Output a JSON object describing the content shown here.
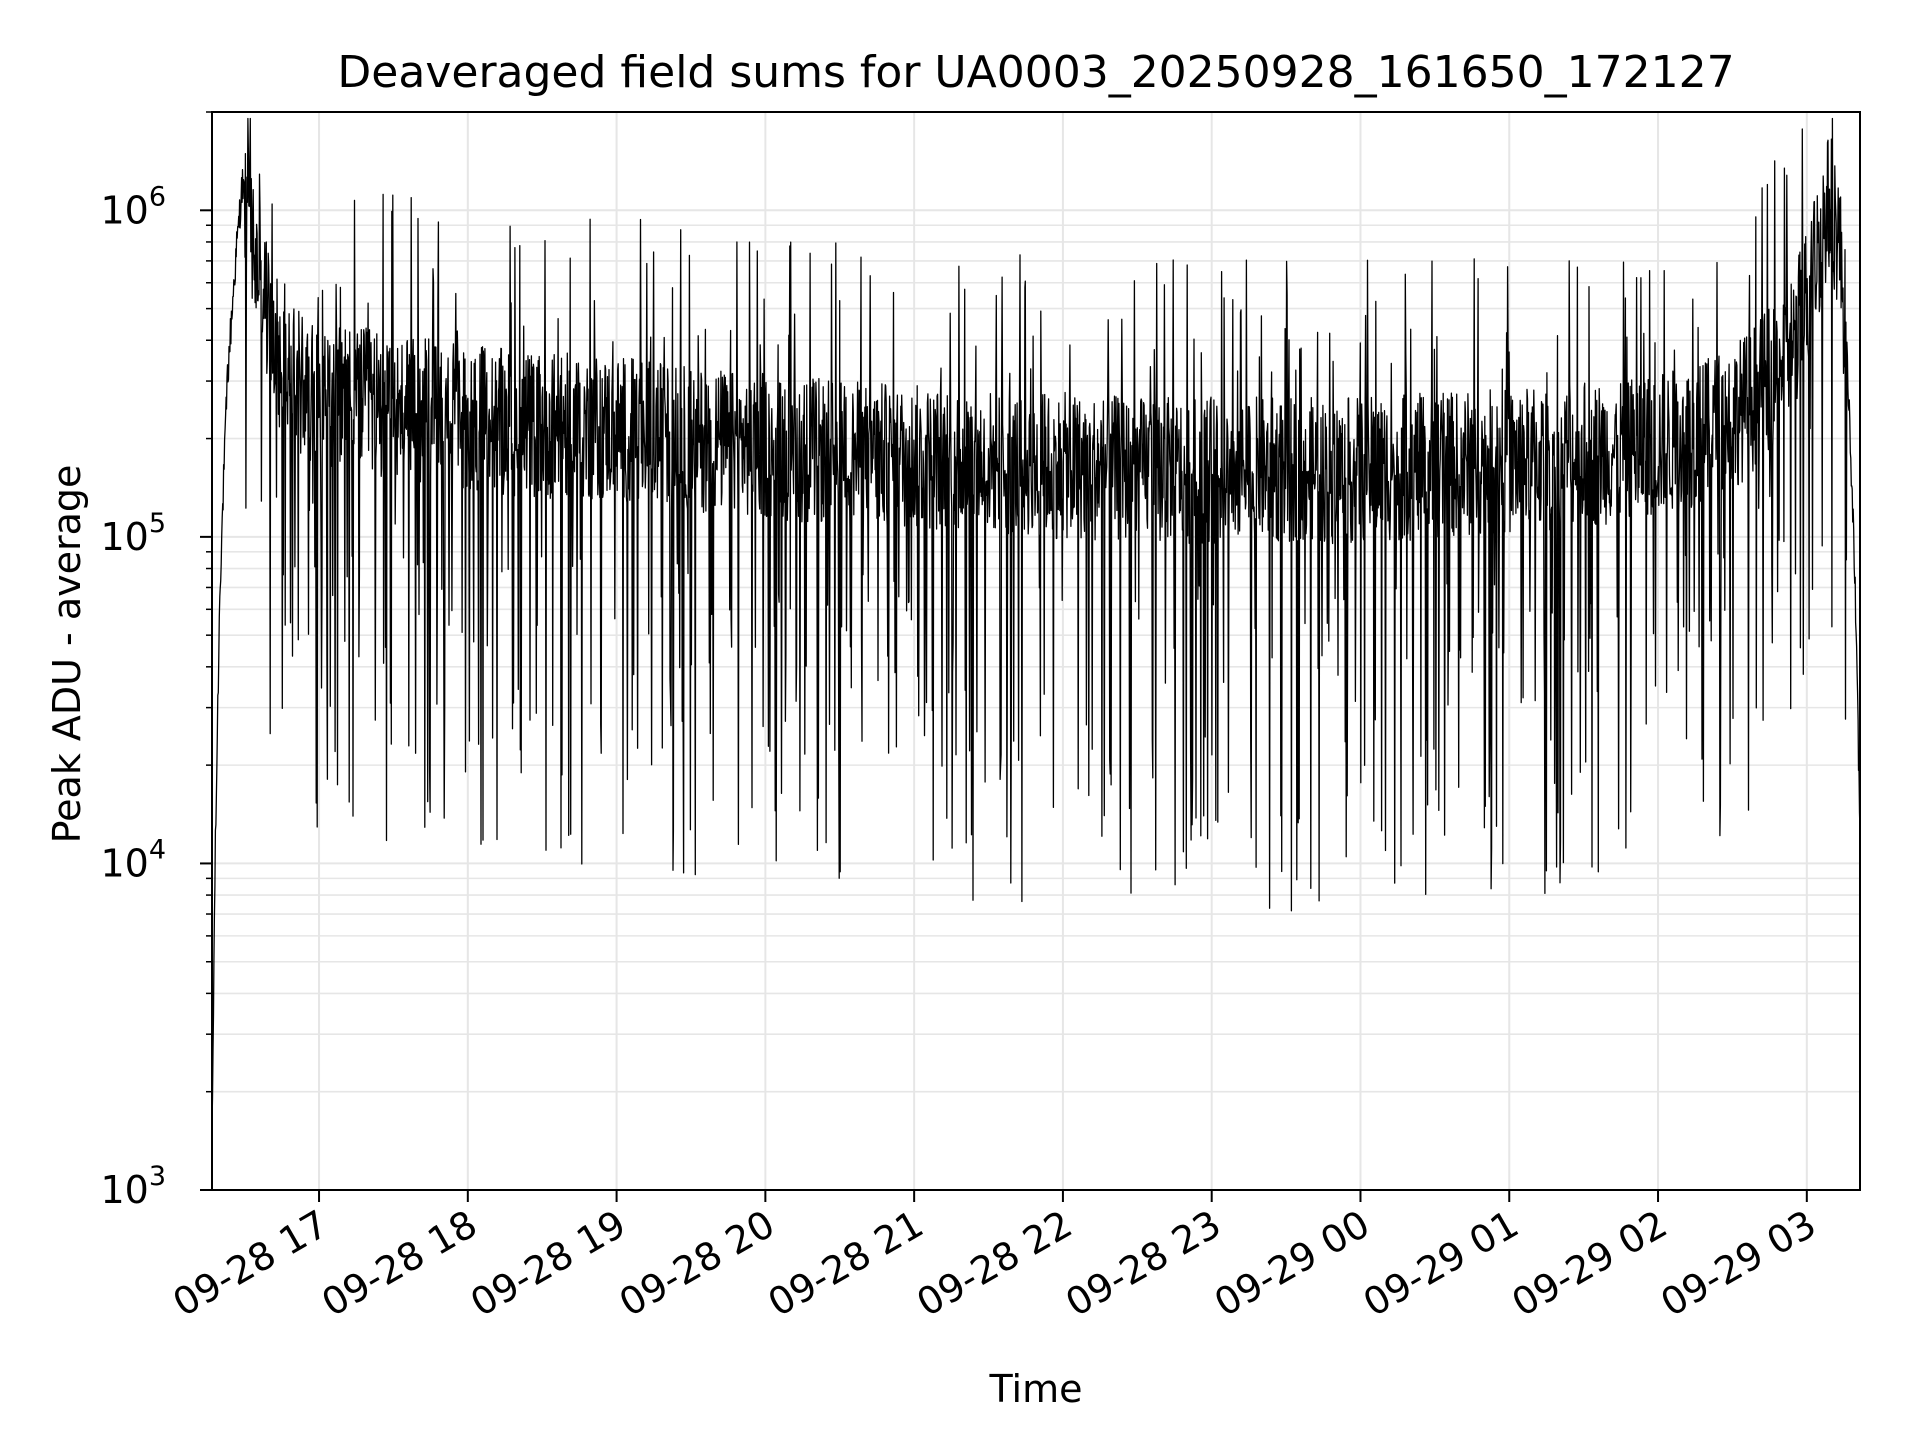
{
  "chart_data": {
    "type": "line",
    "title": "Deaveraged field sums for UA0003_20250928_161650_172127",
    "xlabel": "Time",
    "ylabel": "Peak ADU - average",
    "y_scale": "log",
    "ylim": [
      1000,
      2000000
    ],
    "xlim": [
      "2025-09-28 16:16:50",
      "2025-09-29 03:21:27"
    ],
    "grid": true,
    "line_color": "#000000",
    "grid_color": "#e6e6e6",
    "x_ticks": [
      {
        "value": "2025-09-28 17:00",
        "label": "09-28 17"
      },
      {
        "value": "2025-09-28 18:00",
        "label": "09-28 18"
      },
      {
        "value": "2025-09-28 19:00",
        "label": "09-28 19"
      },
      {
        "value": "2025-09-28 20:00",
        "label": "09-28 20"
      },
      {
        "value": "2025-09-28 21:00",
        "label": "09-28 21"
      },
      {
        "value": "2025-09-28 22:00",
        "label": "09-28 22"
      },
      {
        "value": "2025-09-28 23:00",
        "label": "09-28 23"
      },
      {
        "value": "2025-09-29 00:00",
        "label": "09-29 00"
      },
      {
        "value": "2025-09-29 01:00",
        "label": "09-29 01"
      },
      {
        "value": "2025-09-29 02:00",
        "label": "09-29 02"
      },
      {
        "value": "2025-09-29 03:00",
        "label": "09-29 03"
      }
    ],
    "y_ticks": [
      {
        "value": 1000,
        "base": "10",
        "exp": "3"
      },
      {
        "value": 10000,
        "base": "10",
        "exp": "4"
      },
      {
        "value": 100000,
        "base": "10",
        "exp": "5"
      },
      {
        "value": 1000000,
        "base": "10",
        "exp": "6"
      }
    ],
    "series": [
      {
        "x": [
          "2025-09-28 16:16:50",
          "2025-09-28 16:18",
          "2025-09-28 16:20",
          "2025-09-28 16:23",
          "2025-09-28 16:26",
          "2025-09-28 16:29",
          "2025-09-28 16:32",
          "2025-09-28 16:35",
          "2025-09-28 16:38",
          "2025-09-28 16:40",
          "2025-09-28 16:42",
          "2025-09-28 16:44",
          "2025-09-28 16:46",
          "2025-09-28 16:48",
          "2025-09-28 16:50",
          "2025-09-28 16:55",
          "2025-09-28 17:00",
          "2025-09-28 17:10",
          "2025-09-28 17:20",
          "2025-09-28 17:30",
          "2025-09-28 17:45",
          "2025-09-28 18:00",
          "2025-09-28 18:30",
          "2025-09-28 19:00",
          "2025-09-28 19:30",
          "2025-09-28 20:00",
          "2025-09-28 20:30",
          "2025-09-28 21:00",
          "2025-09-28 21:30",
          "2025-09-28 22:00",
          "2025-09-28 22:30",
          "2025-09-28 23:00",
          "2025-09-28 23:30",
          "2025-09-29 00:00",
          "2025-09-29 00:30",
          "2025-09-29 01:00",
          "2025-09-29 01:30",
          "2025-09-29 02:00",
          "2025-09-29 02:20",
          "2025-09-29 02:35",
          "2025-09-29 02:45",
          "2025-09-29 02:55",
          "2025-09-29 03:00",
          "2025-09-29 03:05",
          "2025-09-29 03:08",
          "2025-09-29 03:10",
          "2025-09-29 03:13",
          "2025-09-29 03:16",
          "2025-09-29 03:19",
          "2025-09-29 03:21:27"
        ],
        "y": [
          1400,
          9000,
          70000,
          300000,
          650000,
          1200000,
          900000,
          650000,
          550000,
          450000,
          400000,
          360000,
          330000,
          310000,
          300000,
          290000,
          280000,
          270000,
          260000,
          250000,
          240000,
          230000,
          220000,
          215000,
          200000,
          190000,
          180000,
          175000,
          170000,
          165000,
          160000,
          160000,
          160000,
          160000,
          165000,
          170000,
          180000,
          190000,
          210000,
          250000,
          300000,
          400000,
          550000,
          800000,
          1000000,
          1050000,
          800000,
          400000,
          100000,
          13000
        ],
        "style": "noisy-trace"
      }
    ]
  }
}
